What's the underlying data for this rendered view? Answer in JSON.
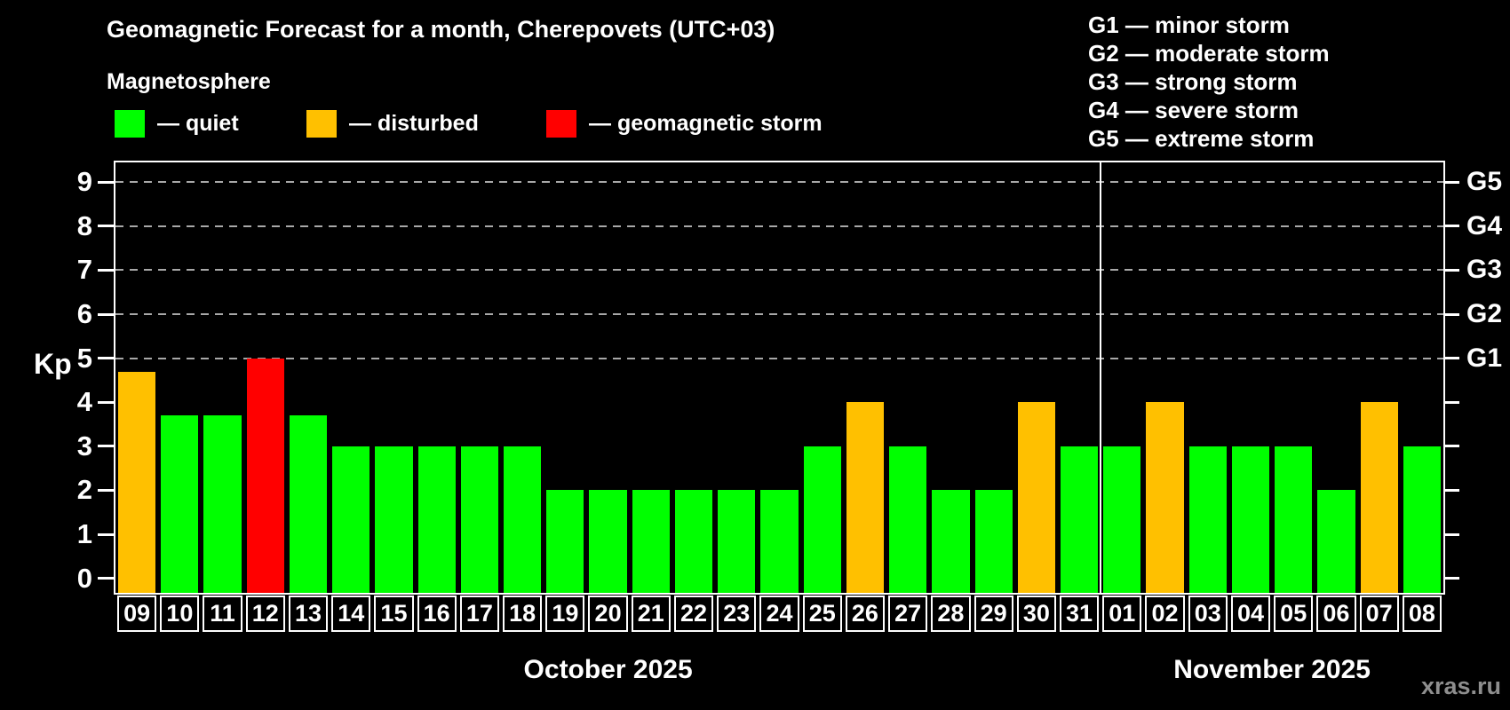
{
  "header": {
    "title": "Geomagnetic Forecast for a month, Cherepovets (UTC+03)",
    "subtitle": "Magnetosphere",
    "legend": [
      {
        "key": "quiet",
        "label": "— quiet",
        "color": "#00ff00"
      },
      {
        "key": "disturbed",
        "label": "— disturbed",
        "color": "#ffc000"
      },
      {
        "key": "storm",
        "label": "— geomagnetic storm",
        "color": "#ff0000"
      }
    ],
    "storm_scale": [
      "G1 — minor storm",
      "G2 — moderate storm",
      "G3 — strong storm",
      "G4 — severe storm",
      "G5 — extreme storm"
    ]
  },
  "chart_data": {
    "type": "bar",
    "ylabel": "Kp",
    "ylim": [
      -0.33,
      9.45
    ],
    "y_ticks": [
      0,
      1,
      2,
      3,
      4,
      5,
      6,
      7,
      8,
      9
    ],
    "gridlines": [
      5,
      6,
      7,
      8,
      9
    ],
    "grid": "dashed horizontal at storm levels only",
    "right_axis_labels": [
      {
        "value": 5,
        "label": "G1"
      },
      {
        "value": 6,
        "label": "G2"
      },
      {
        "value": 7,
        "label": "G3"
      },
      {
        "value": 8,
        "label": "G4"
      },
      {
        "value": 9,
        "label": "G5"
      }
    ],
    "months": [
      {
        "label": "October 2025",
        "count": 23
      },
      {
        "label": "November 2025",
        "count": 8
      }
    ],
    "categories": [
      "09",
      "10",
      "11",
      "12",
      "13",
      "14",
      "15",
      "16",
      "17",
      "18",
      "19",
      "20",
      "21",
      "22",
      "23",
      "24",
      "25",
      "26",
      "27",
      "28",
      "29",
      "30",
      "31",
      "01",
      "02",
      "03",
      "04",
      "05",
      "06",
      "07",
      "08"
    ],
    "values": [
      4.7,
      3.7,
      3.7,
      5,
      3.7,
      3,
      3,
      3,
      3,
      3,
      2,
      2,
      2,
      2,
      2,
      2,
      3,
      4,
      3,
      2,
      2,
      4,
      3,
      3,
      4,
      3,
      3,
      3,
      2,
      4,
      3
    ],
    "statuses": [
      "disturbed",
      "quiet",
      "quiet",
      "storm",
      "quiet",
      "quiet",
      "quiet",
      "quiet",
      "quiet",
      "quiet",
      "quiet",
      "quiet",
      "quiet",
      "quiet",
      "quiet",
      "quiet",
      "quiet",
      "disturbed",
      "quiet",
      "quiet",
      "quiet",
      "disturbed",
      "quiet",
      "quiet",
      "disturbed",
      "quiet",
      "quiet",
      "quiet",
      "quiet",
      "disturbed",
      "quiet"
    ],
    "colors": {
      "quiet": "#00ff00",
      "disturbed": "#ffc000",
      "storm": "#ff0000"
    }
  },
  "footer": {
    "watermark": "xras.ru"
  }
}
